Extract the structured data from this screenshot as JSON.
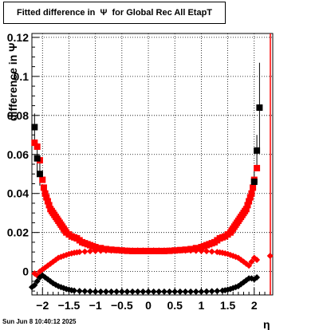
{
  "title": "Fitted difference in  Ψ  for Global Rec All EtapT",
  "footer": "Sun Jun  8 10:40:12 2025",
  "chart_data": {
    "type": "scatter",
    "title": "Fitted difference in  Ψ  for Global Rec All EtapT",
    "xlabel": "η",
    "ylabel": "difference in  Ψ",
    "xlim": [
      -2.2,
      2.35
    ],
    "ylim": [
      -0.012,
      0.122
    ],
    "grid": true,
    "x_ticks": [
      -2,
      -1.5,
      -1,
      -0.5,
      0,
      0.5,
      1,
      1.5,
      2
    ],
    "x_tick_labels": [
      "−2",
      "−1.5",
      "−1",
      "−0.5",
      "0",
      "0.5",
      "1",
      "1.5",
      "2"
    ],
    "y_ticks": [
      0,
      0.02,
      0.04,
      0.06,
      0.08,
      0.1,
      0.12
    ],
    "y_tick_labels": [
      "0",
      "0.02",
      "0.04",
      "0.06",
      "0.08",
      "0.1",
      "0.12"
    ],
    "series": [
      {
        "color": "#ff0000",
        "marker": "square",
        "x": [
          -2.15,
          -2.1,
          -2.05,
          -2.0,
          -1.975,
          -1.95,
          -1.925,
          -1.9,
          -1.875,
          -1.85,
          -1.825,
          -1.8,
          -1.775,
          -1.75,
          -1.725,
          -1.7,
          -1.675,
          -1.65,
          -1.625,
          -1.6,
          -1.575,
          -1.55,
          -1.5,
          -1.45,
          -1.4,
          -1.35,
          -1.3,
          -1.25,
          -1.2,
          -1.15,
          -1.1,
          -1.05,
          -1.0,
          -0.9,
          -0.8,
          -0.7,
          -0.6,
          -0.5,
          -0.4,
          -0.3,
          -0.2,
          -0.1,
          0.0,
          0.1,
          0.2,
          0.3,
          0.4,
          0.5,
          0.6,
          0.7,
          0.8,
          0.9,
          1.0,
          1.05,
          1.1,
          1.15,
          1.2,
          1.25,
          1.3,
          1.35,
          1.4,
          1.45,
          1.5,
          1.55,
          1.575,
          1.6,
          1.625,
          1.65,
          1.675,
          1.7,
          1.725,
          1.75,
          1.775,
          1.8,
          1.825,
          1.85,
          1.875,
          1.9,
          1.925,
          1.95,
          1.975,
          2.0,
          2.05
        ],
        "y": [
          0.066,
          0.064,
          0.057,
          0.047,
          0.043,
          0.04,
          0.038,
          0.036,
          0.034,
          0.032,
          0.031,
          0.03,
          0.029,
          0.028,
          0.027,
          0.026,
          0.025,
          0.024,
          0.023,
          0.022,
          0.021,
          0.02,
          0.019,
          0.018,
          0.0175,
          0.017,
          0.016,
          0.015,
          0.0145,
          0.014,
          0.0135,
          0.013,
          0.0125,
          0.012,
          0.0115,
          0.0112,
          0.011,
          0.0108,
          0.0106,
          0.0105,
          0.0105,
          0.0105,
          0.0105,
          0.0105,
          0.0105,
          0.0105,
          0.0106,
          0.0108,
          0.011,
          0.0112,
          0.0115,
          0.012,
          0.0125,
          0.013,
          0.0135,
          0.014,
          0.0145,
          0.015,
          0.016,
          0.017,
          0.0175,
          0.018,
          0.019,
          0.02,
          0.021,
          0.022,
          0.023,
          0.024,
          0.025,
          0.026,
          0.027,
          0.028,
          0.029,
          0.03,
          0.031,
          0.032,
          0.034,
          0.036,
          0.038,
          0.04,
          0.043,
          0.047,
          0.053
        ]
      },
      {
        "color": "#ff0000",
        "marker": "diamond",
        "x": [
          -2.15,
          -2.1,
          -2.05,
          -2.0,
          -1.95,
          -1.9,
          -1.85,
          -1.8,
          -1.75,
          -1.7,
          -1.65,
          -1.6,
          -1.55,
          -1.5,
          -1.45,
          -1.4,
          -1.35,
          -1.3,
          -1.2,
          -1.1,
          -1.0,
          -0.9,
          -0.8,
          -0.7,
          -0.6,
          -0.5,
          -0.4,
          -0.3,
          -0.2,
          -0.1,
          0.0,
          0.1,
          0.2,
          0.3,
          0.4,
          0.5,
          0.6,
          0.7,
          0.8,
          0.9,
          1.0,
          1.1,
          1.2,
          1.3,
          1.35,
          1.4,
          1.45,
          1.5,
          1.55,
          1.6,
          1.65,
          1.7,
          1.75,
          1.8,
          1.85,
          1.9,
          1.95,
          2.0,
          2.05,
          2.3
        ],
        "y": [
          -0.001,
          -0.002,
          0.0,
          0.001,
          0.002,
          0.003,
          0.004,
          0.005,
          0.006,
          0.007,
          0.0075,
          0.008,
          0.0085,
          0.009,
          0.0093,
          0.0096,
          0.0098,
          0.01,
          0.0102,
          0.0104,
          0.0105,
          0.0106,
          0.0107,
          0.0107,
          0.0108,
          0.0108,
          0.0108,
          0.0108,
          0.0108,
          0.0108,
          0.0108,
          0.0108,
          0.0108,
          0.0108,
          0.0108,
          0.0108,
          0.0108,
          0.0107,
          0.0107,
          0.0106,
          0.0105,
          0.0104,
          0.0102,
          0.01,
          0.0098,
          0.0096,
          0.0093,
          0.009,
          0.0085,
          0.008,
          0.0075,
          0.007,
          0.006,
          0.005,
          0.004,
          0.003,
          0.005,
          0.007,
          0.006,
          0.008
        ]
      },
      {
        "color": "#000000",
        "marker": "square",
        "x": [
          -2.15,
          -2.1,
          -2.05,
          2.0,
          2.05,
          2.1
        ],
        "y": [
          0.074,
          0.058,
          0.05,
          0.046,
          0.062,
          0.084
        ],
        "err": [
          0.007,
          0.008,
          0.006,
          0.006,
          0.008,
          0.023
        ]
      },
      {
        "color": "#000000",
        "marker": "diamond",
        "x": [
          -2.2,
          -2.15,
          -2.1,
          -2.05,
          -2.0,
          -1.95,
          -1.9,
          -1.85,
          -1.8,
          -1.75,
          -1.7,
          -1.65,
          -1.6,
          -1.55,
          -1.5,
          -1.45,
          -1.4,
          -1.3,
          -1.2,
          -1.1,
          -1.0,
          -0.9,
          -0.8,
          -0.7,
          -0.6,
          -0.5,
          -0.4,
          -0.3,
          -0.2,
          -0.1,
          0.0,
          0.1,
          0.2,
          0.3,
          0.4,
          0.5,
          0.6,
          0.7,
          0.8,
          0.9,
          1.0,
          1.1,
          1.2,
          1.3,
          1.4,
          1.45,
          1.5,
          1.55,
          1.6,
          1.65,
          1.7,
          1.75,
          1.8,
          1.85,
          1.9,
          1.95,
          2.0,
          2.05
        ],
        "y": [
          -0.008,
          -0.007,
          -0.005,
          -0.003,
          -0.002,
          -0.003,
          -0.004,
          -0.005,
          -0.006,
          -0.0068,
          -0.0075,
          -0.008,
          -0.0085,
          -0.009,
          -0.0093,
          -0.0096,
          -0.0098,
          -0.01,
          -0.0101,
          -0.0102,
          -0.0103,
          -0.0103,
          -0.0103,
          -0.0103,
          -0.0103,
          -0.0103,
          -0.0103,
          -0.0103,
          -0.0103,
          -0.0103,
          -0.0103,
          -0.0103,
          -0.0103,
          -0.0103,
          -0.0103,
          -0.0103,
          -0.0103,
          -0.0103,
          -0.0103,
          -0.0103,
          -0.0103,
          -0.0102,
          -0.0101,
          -0.01,
          -0.0098,
          -0.0096,
          -0.0093,
          -0.009,
          -0.0085,
          -0.008,
          -0.0075,
          -0.0065,
          -0.0055,
          -0.0045,
          -0.0035,
          -0.0035,
          -0.004,
          -0.003
        ]
      }
    ]
  }
}
